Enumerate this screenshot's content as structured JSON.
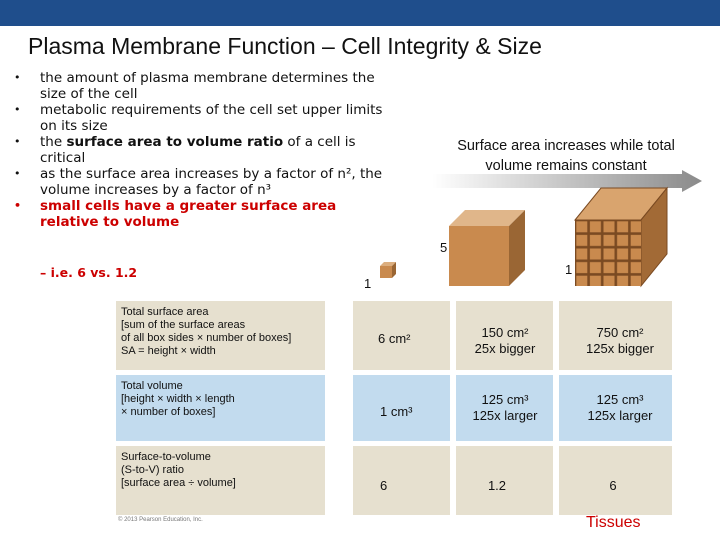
{
  "title": "Plasma Membrane Function – Cell Integrity & Size",
  "bullets": [
    {
      "text": "the amount of plasma membrane determines the size of the cell"
    },
    {
      "text": "metabolic requirements of the cell set upper limits on its size"
    },
    {
      "before": "the ",
      "bold": "surface area to volume ratio",
      "after": " of a cell is critical"
    },
    {
      "text": "as the surface area increases by a factor of n², the volume increases by a factor of n³"
    },
    {
      "text": "small cells have a greater surface area relative to volume"
    }
  ],
  "sub_bullet": "– i.e. 6 vs. 1.2",
  "caption": "Surface area increases while total volume remains constant",
  "cube_labels": {
    "small": "1",
    "medium": "5",
    "large": "1"
  },
  "rows": [
    {
      "label": [
        "Total surface area",
        "[sum of the surface areas",
        "of all box sides × number of boxes]",
        "SA = height × width"
      ],
      "c1": "6 cm²",
      "c2": [
        "150 cm²",
        "25x bigger"
      ],
      "c3": [
        "750 cm²",
        "125x bigger"
      ]
    },
    {
      "label": [
        "Total volume",
        "[height × width × length",
        "× number of boxes]"
      ],
      "c1": "1 cm³",
      "c2": [
        "125 cm³",
        "125x larger"
      ],
      "c3": [
        "125 cm³",
        "125x larger"
      ]
    },
    {
      "label": [
        "Surface-to-volume",
        "(S-to-V) ratio",
        "[surface area ÷ volume]"
      ],
      "c1": "6",
      "c2": [
        "1.2"
      ],
      "c3": [
        "6"
      ]
    }
  ],
  "copyright": "© 2013 Pearson Education, Inc.",
  "footer_link": "Tissues",
  "colors": {
    "header_bar": "#1f4e8c",
    "accent_red": "#cc0000",
    "row_tan": "#e6e0cf",
    "row_blue": "#c2dbee",
    "cube": "#c98a4e"
  }
}
